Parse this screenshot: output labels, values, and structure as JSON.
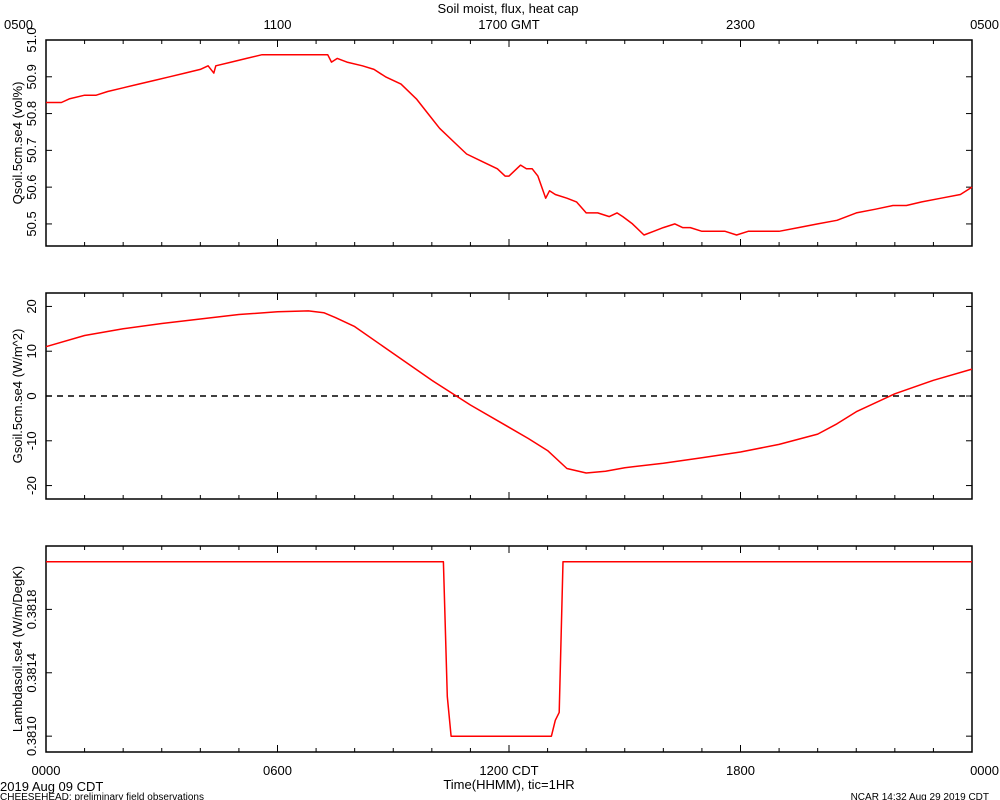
{
  "title": "Soil moist, flux, heat cap",
  "top_axis": {
    "ticks": [
      "0500",
      "1100",
      "1700 GMT",
      "2300",
      "0500"
    ]
  },
  "bottom_axis": {
    "ticks": [
      "0000",
      "0600",
      "1200 CDT",
      "1800",
      "0000"
    ],
    "label": "Time(HHMM), tic=1HR",
    "date": "2019 Aug 09 CDT"
  },
  "footer": {
    "left": "CHEESEHEAD: preliminary field observations",
    "right": "NCAR 14:32 Aug 29 2019 CDT"
  },
  "colors": {
    "series": "#ff0000",
    "axes": "#000000",
    "zero_line": "#000000"
  },
  "chart_data": [
    {
      "type": "line",
      "ylabel": "Qsoil.5cm.se4 (vol%)",
      "xlim": [
        0,
        24
      ],
      "ylim": [
        50.44,
        51.0
      ],
      "yticks": [
        50.5,
        50.6,
        50.7,
        50.8,
        50.9,
        51.0
      ],
      "yticklabels": [
        "50.5",
        "50.6",
        "50.7",
        "50.8",
        "50.9",
        "51.0"
      ],
      "series": [
        {
          "x": [
            0,
            0.4,
            0.6,
            1.0,
            1.3,
            1.6,
            2.0,
            2.4,
            2.8,
            3.2,
            3.6,
            4.0,
            4.2,
            4.35,
            4.4,
            4.8,
            5.2,
            5.6,
            5.9,
            6.4,
            6.8,
            7.3,
            7.4,
            7.55,
            7.8,
            8.2,
            8.5,
            8.8,
            9.2,
            9.6,
            9.9,
            10.2,
            10.6,
            10.9,
            11.3,
            11.7,
            11.9,
            12.0,
            12.3,
            12.45,
            12.6,
            12.75,
            12.95,
            13.05,
            13.2,
            13.5,
            13.75,
            14.0,
            14.3,
            14.6,
            14.8,
            14.95,
            15.2,
            15.5,
            15.75,
            16.0,
            16.3,
            16.5,
            16.7,
            17.0,
            17.3,
            17.6,
            17.9,
            18.2,
            18.6,
            19.0,
            19.5,
            20.0,
            20.5,
            21.0,
            21.5,
            21.95,
            22.3,
            22.7,
            23.2,
            23.7,
            24.0
          ],
          "y": [
            50.83,
            50.83,
            50.84,
            50.85,
            50.85,
            50.86,
            50.87,
            50.88,
            50.89,
            50.9,
            50.91,
            50.92,
            50.93,
            50.91,
            50.93,
            50.94,
            50.95,
            50.96,
            50.96,
            50.96,
            50.96,
            50.96,
            50.94,
            50.95,
            50.94,
            50.93,
            50.92,
            50.9,
            50.88,
            50.84,
            50.8,
            50.76,
            50.72,
            50.69,
            50.67,
            50.65,
            50.63,
            50.63,
            50.66,
            50.65,
            50.65,
            50.63,
            50.57,
            50.59,
            50.58,
            50.57,
            50.56,
            50.53,
            50.53,
            50.52,
            50.53,
            50.52,
            50.5,
            50.47,
            50.48,
            50.49,
            50.5,
            50.49,
            50.49,
            50.48,
            50.48,
            50.48,
            50.47,
            50.48,
            50.48,
            50.48,
            50.49,
            50.5,
            50.51,
            50.53,
            50.54,
            50.55,
            50.55,
            50.56,
            50.57,
            50.58,
            50.6
          ]
        }
      ]
    },
    {
      "type": "line",
      "ylabel": "Gsoil.5cm.se4 (W/m^2)",
      "xlim": [
        0,
        24
      ],
      "ylim": [
        -23,
        23
      ],
      "yticks": [
        -20,
        -10,
        0,
        10,
        20
      ],
      "yticklabels": [
        "-20",
        "-10",
        "0",
        "10",
        "20"
      ],
      "zero_line": true,
      "series": [
        {
          "x": [
            0,
            1,
            2,
            3,
            4,
            5,
            6,
            6.8,
            7.2,
            7.5,
            8,
            9,
            10,
            11,
            12,
            12.5,
            13,
            13.5,
            14,
            14.5,
            15,
            16,
            17,
            18,
            19,
            20,
            20.5,
            21,
            22,
            23,
            24
          ],
          "y": [
            11,
            13.5,
            15,
            16.2,
            17.2,
            18.2,
            18.8,
            19,
            18.6,
            17.5,
            15.5,
            9.5,
            3.5,
            -2,
            -7,
            -9.5,
            -12.2,
            -16.2,
            -17.2,
            -16.8,
            -16,
            -15,
            -13.8,
            -12.5,
            -10.8,
            -8.5,
            -6.2,
            -3.5,
            0.5,
            3.5,
            6
          ]
        }
      ]
    },
    {
      "type": "line",
      "ylabel": "Lambdasoil.se4 (W/m/DegK)",
      "xlim": [
        0,
        24
      ],
      "ylim": [
        0.3809,
        0.3822
      ],
      "yticks": [
        0.381,
        0.3814,
        0.3818
      ],
      "yticklabels": [
        "0.3810",
        "0.3814",
        "0.3818"
      ],
      "series": [
        {
          "x": [
            0,
            10.3,
            10.4,
            10.5,
            13.1,
            13.2,
            13.3,
            13.4,
            24
          ],
          "y": [
            0.3821,
            0.3821,
            0.38125,
            0.381,
            0.381,
            0.3811,
            0.38115,
            0.3821,
            0.3821
          ]
        }
      ]
    }
  ]
}
